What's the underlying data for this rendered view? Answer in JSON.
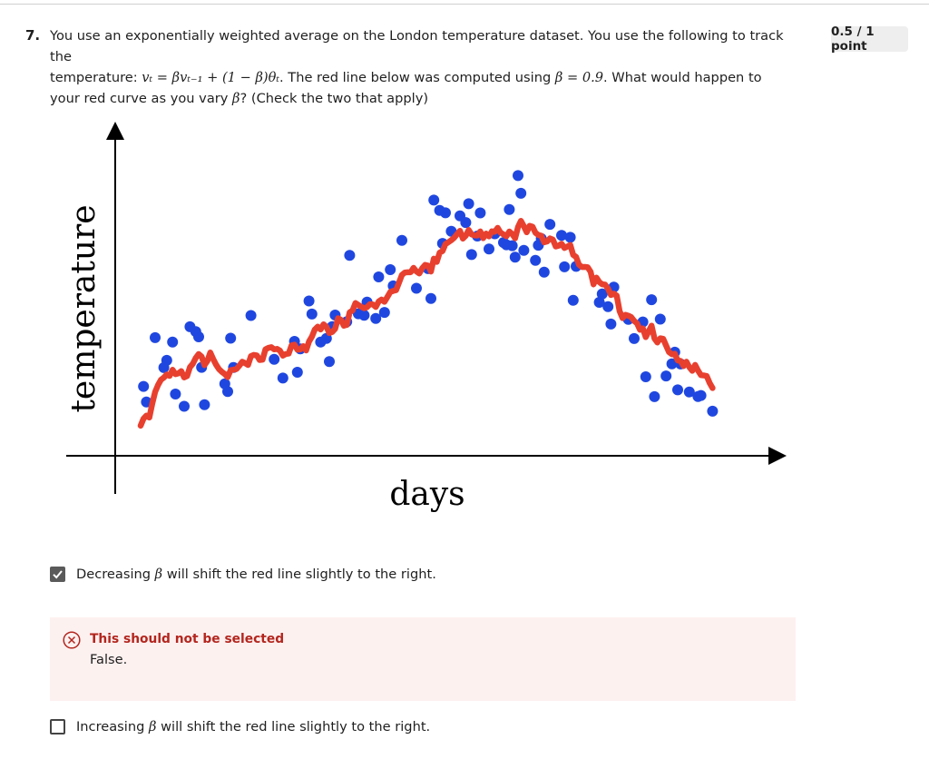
{
  "question": {
    "number": "7.",
    "line1": "You use an exponentially weighted average on the London temperature dataset. You use the following to track the",
    "line2_prefix": "temperature: ",
    "line2_formula": "vₜ = βvₜ₋₁ + (1 − β)θₜ",
    "line2_mid": ". The red line below was computed using ",
    "line2_beta_value": "β = 0.9",
    "line2_suffix": ". What would happen to",
    "line3_prefix": "your red curve as you vary ",
    "line3_beta": "β",
    "line3_suffix": "? (Check the two that apply)"
  },
  "score": "0.5 / 1 point",
  "figure": {
    "y_label": "temperature",
    "x_label": "days",
    "colors": {
      "points": "#1f47e0",
      "line": "#e8402f",
      "axis": "#000000"
    }
  },
  "options": [
    {
      "prefix": "Decreasing ",
      "beta": "β",
      "suffix": " will shift the red line slightly to the right.",
      "checked": true
    },
    {
      "prefix": "Increasing ",
      "beta": "β",
      "suffix": " will shift the red line slightly to the right.",
      "checked": false
    }
  ],
  "feedback": {
    "title": "This should not be selected",
    "body": "False."
  }
}
